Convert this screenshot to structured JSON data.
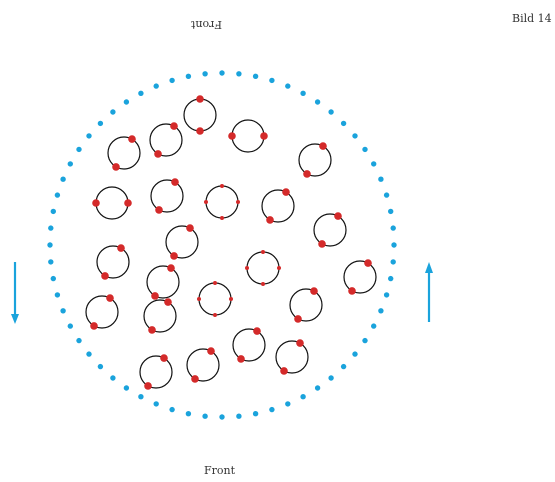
{
  "labels": {
    "top": "Front",
    "bottom": "Front",
    "corner": "Bild 14"
  },
  "colors": {
    "dots": "#1aa3dc",
    "arrows": "#1aa3dc",
    "ring": "#111111",
    "marker": "#d42a2a",
    "text": "#333333"
  }
}
